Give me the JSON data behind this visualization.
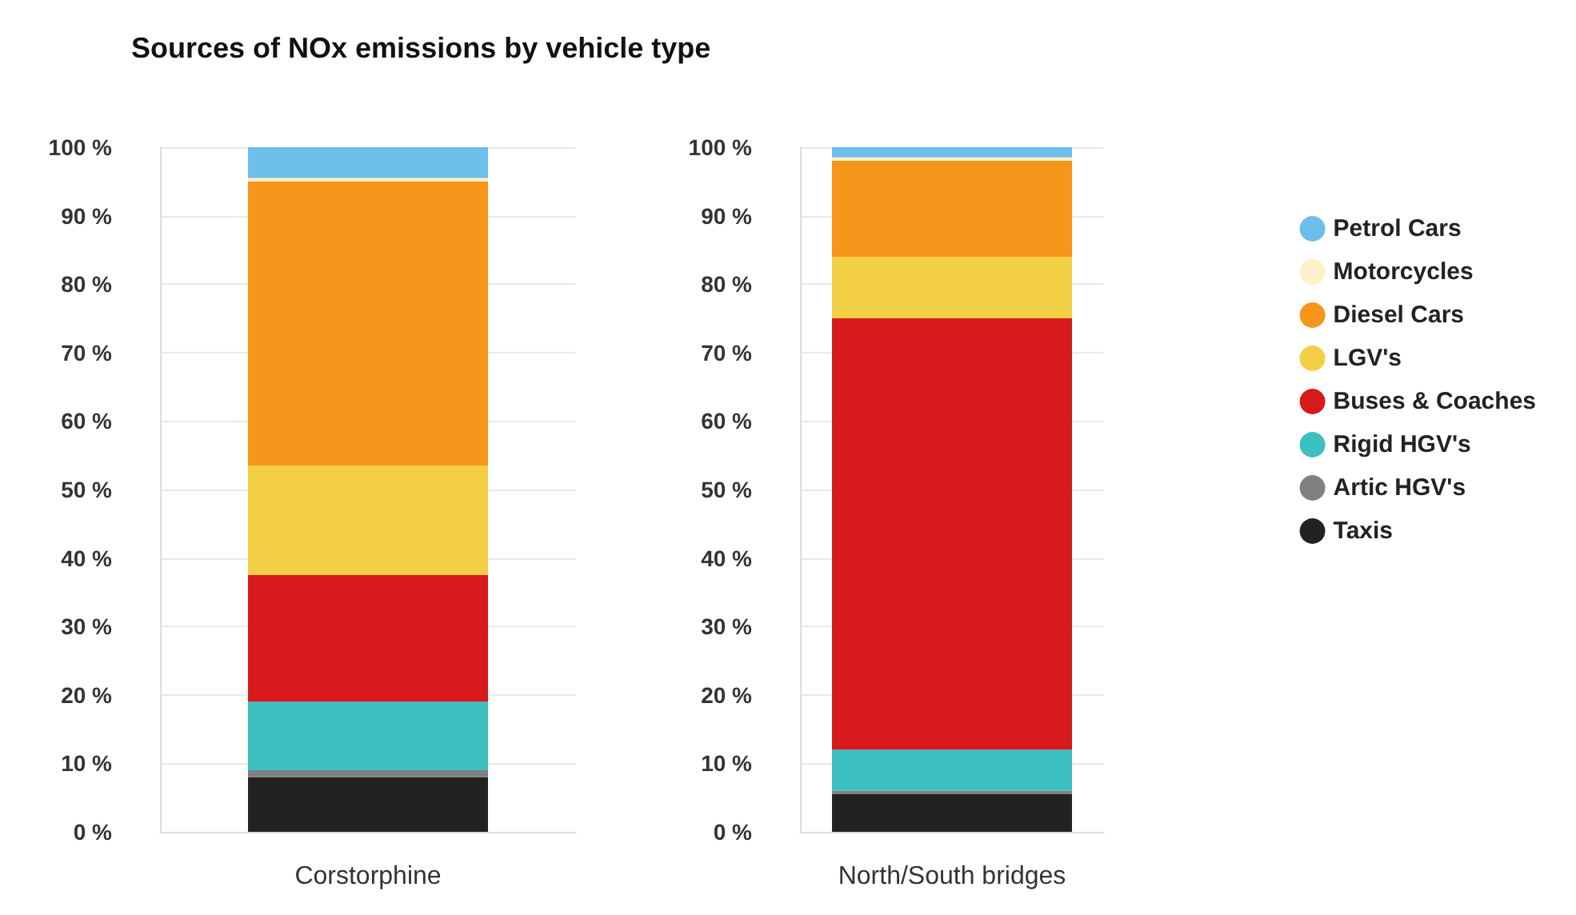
{
  "chart_data": [
    {
      "type": "bar",
      "title": "Sources of NOx emissions by vehicle type",
      "categories": [
        "Corstorphine"
      ],
      "stacked": true,
      "ylim": [
        0,
        100
      ],
      "yticks": [
        {
          "value": 0,
          "label": "0 %"
        },
        {
          "value": 10,
          "label": "10 %"
        },
        {
          "value": 20,
          "label": "20 %"
        },
        {
          "value": 30,
          "label": "30 %"
        },
        {
          "value": 40,
          "label": "40 %"
        },
        {
          "value": 50,
          "label": "50 %"
        },
        {
          "value": 60,
          "label": "60 %"
        },
        {
          "value": 70,
          "label": "70 %"
        },
        {
          "value": 80,
          "label": "80 %"
        },
        {
          "value": 90,
          "label": "90 %"
        },
        {
          "value": 100,
          "label": "100 %"
        }
      ],
      "grid": "y",
      "legend": false,
      "series": [
        {
          "color": "#222222",
          "values": [
            8
          ]
        },
        {
          "color": "#808080",
          "values": [
            1
          ]
        },
        {
          "color": "#3bbfbf",
          "values": [
            10
          ]
        },
        {
          "color": "#d7191c",
          "values": [
            18.5
          ]
        },
        {
          "color": "#f3cf45",
          "values": [
            16
          ]
        },
        {
          "color": "#f5961b",
          "values": [
            41.5
          ]
        },
        {
          "color": "#fdf1c8",
          "values": [
            0.5
          ]
        },
        {
          "color": "#6cbfea",
          "values": [
            4.5
          ]
        }
      ]
    },
    {
      "type": "bar",
      "categories": [
        "North/South bridges"
      ],
      "stacked": true,
      "ylim": [
        0,
        100
      ],
      "yticks": [
        {
          "value": 0,
          "label": "0 %"
        },
        {
          "value": 10,
          "label": "10 %"
        },
        {
          "value": 20,
          "label": "20 %"
        },
        {
          "value": 30,
          "label": "30 %"
        },
        {
          "value": 40,
          "label": "40 %"
        },
        {
          "value": 50,
          "label": "50 %"
        },
        {
          "value": 60,
          "label": "60 %"
        },
        {
          "value": 70,
          "label": "70 %"
        },
        {
          "value": 80,
          "label": "80 %"
        },
        {
          "value": 90,
          "label": "90 %"
        },
        {
          "value": 100,
          "label": "100 %"
        }
      ],
      "grid": "y",
      "legend": "right",
      "series": [
        {
          "name": "Taxis",
          "color": "#222222",
          "values": [
            5.5
          ]
        },
        {
          "name": "Artic HGV's",
          "color": "#808080",
          "values": [
            0.5
          ]
        },
        {
          "name": "Rigid HGV's",
          "color": "#3bbfbf",
          "values": [
            6
          ]
        },
        {
          "name": "Buses & Coaches",
          "color": "#d7191c",
          "values": [
            63
          ]
        },
        {
          "name": "LGV's",
          "color": "#f3cf45",
          "values": [
            9
          ]
        },
        {
          "name": "Diesel Cars",
          "color": "#f5961b",
          "values": [
            14
          ]
        },
        {
          "name": "Motorcycles",
          "color": "#fdf1c8",
          "values": [
            0.5
          ]
        },
        {
          "name": "Petrol Cars",
          "color": "#6cbfea",
          "values": [
            1.5
          ]
        }
      ]
    }
  ]
}
